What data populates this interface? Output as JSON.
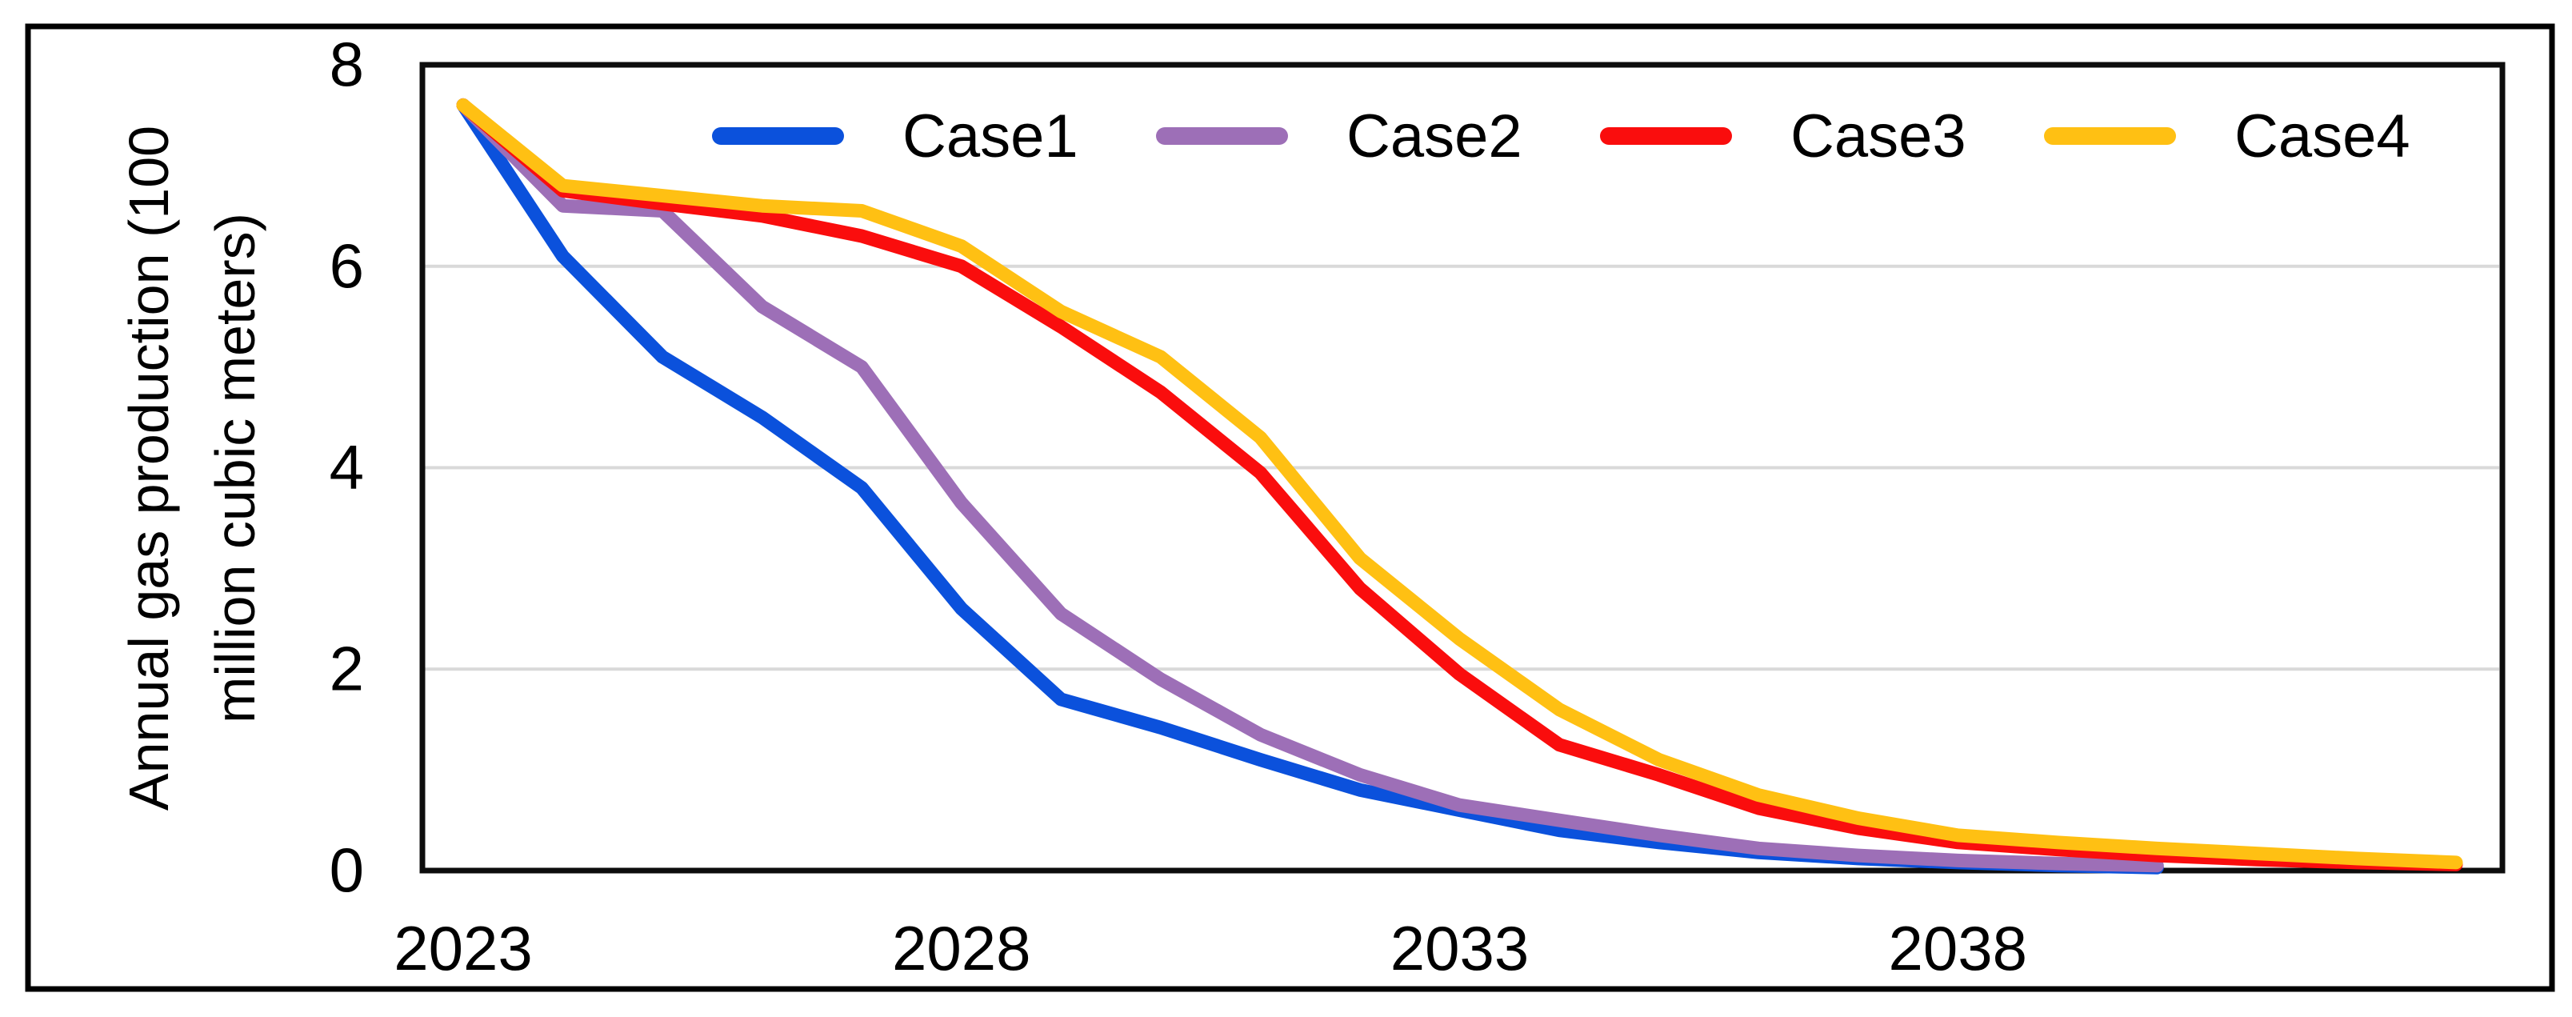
{
  "figure": {
    "background_color": "#FFFFFF",
    "outer_frame_color": "#000000",
    "plot_border_color": "#0D0D0D",
    "gridline_color": "#D9D9D9"
  },
  "y_axis": {
    "title_line1": "Annual gas production (100",
    "title_line2": "million cubic meters)",
    "ticks": [
      {
        "label": "8",
        "value": 8
      },
      {
        "label": "6",
        "value": 6
      },
      {
        "label": "4",
        "value": 4
      },
      {
        "label": "2",
        "value": 2
      },
      {
        "label": "0",
        "value": 0
      }
    ],
    "min": 0,
    "max": 8
  },
  "x_axis": {
    "ticks": [
      {
        "label": "2023",
        "value": 2023
      },
      {
        "label": "2028",
        "value": 2028
      },
      {
        "label": "2033",
        "value": 2033
      },
      {
        "label": "2038",
        "value": 2038
      }
    ]
  },
  "legend": {
    "position": "top",
    "items": [
      {
        "label": "Case1",
        "color": "#0B51DC"
      },
      {
        "label": "Case2",
        "color": "#9D6FB7"
      },
      {
        "label": "Case3",
        "color": "#FA0D0D"
      },
      {
        "label": "Case4",
        "color": "#FFC013"
      }
    ]
  },
  "chart_data": {
    "type": "line",
    "title": "",
    "xlabel": "",
    "ylabel": "Annual gas production (100 million cubic meters)",
    "ylim": [
      0,
      8
    ],
    "xlim": [
      2022.5,
      2043.5
    ],
    "grid_y_values": [
      2,
      4,
      6
    ],
    "legend_position": "top-inside",
    "x_tick_values": [
      2023,
      2028,
      2033,
      2038
    ],
    "series": [
      {
        "name": "Case1",
        "color": "#0B51DC",
        "x_start": 2023,
        "x": [
          2023,
          2024,
          2025,
          2026,
          2027,
          2028,
          2029,
          2030,
          2031,
          2032,
          2033,
          2034,
          2035,
          2036,
          2037,
          2038,
          2039,
          2040
        ],
        "values": [
          7.6,
          6.1,
          5.1,
          4.5,
          3.8,
          2.6,
          1.7,
          1.42,
          1.1,
          0.8,
          0.6,
          0.4,
          0.28,
          0.18,
          0.12,
          0.08,
          0.05,
          0.03
        ]
      },
      {
        "name": "Case2",
        "color": "#9D6FB7",
        "x_start": 2023,
        "x": [
          2023,
          2024,
          2025,
          2026,
          2027,
          2028,
          2029,
          2030,
          2031,
          2032,
          2033,
          2034,
          2035,
          2036,
          2037,
          2038,
          2039,
          2040
        ],
        "values": [
          7.6,
          6.6,
          6.55,
          5.6,
          5.0,
          3.65,
          2.55,
          1.9,
          1.35,
          0.95,
          0.65,
          0.5,
          0.35,
          0.22,
          0.15,
          0.1,
          0.07,
          0.05
        ]
      },
      {
        "name": "Case3",
        "color": "#FA0D0D",
        "x_start": 2023,
        "x": [
          2023,
          2024,
          2025,
          2026,
          2027,
          2028,
          2029,
          2030,
          2031,
          2032,
          2033,
          2034,
          2035,
          2036,
          2037,
          2038,
          2039,
          2040,
          2041,
          2042,
          2043
        ],
        "values": [
          7.6,
          6.75,
          6.62,
          6.5,
          6.3,
          6.0,
          5.4,
          4.75,
          3.95,
          2.8,
          1.95,
          1.25,
          0.95,
          0.62,
          0.42,
          0.28,
          0.21,
          0.15,
          0.11,
          0.08,
          0.06
        ]
      },
      {
        "name": "Case4",
        "color": "#FFC013",
        "x_start": 2023,
        "x": [
          2023,
          2024,
          2025,
          2026,
          2027,
          2028,
          2029,
          2030,
          2031,
          2032,
          2033,
          2034,
          2035,
          2036,
          2037,
          2038,
          2039,
          2040,
          2041,
          2042,
          2043
        ],
        "values": [
          7.6,
          6.8,
          6.7,
          6.6,
          6.55,
          6.2,
          5.55,
          5.1,
          4.3,
          3.1,
          2.3,
          1.6,
          1.1,
          0.75,
          0.52,
          0.35,
          0.28,
          0.22,
          0.17,
          0.12,
          0.08
        ]
      }
    ]
  }
}
